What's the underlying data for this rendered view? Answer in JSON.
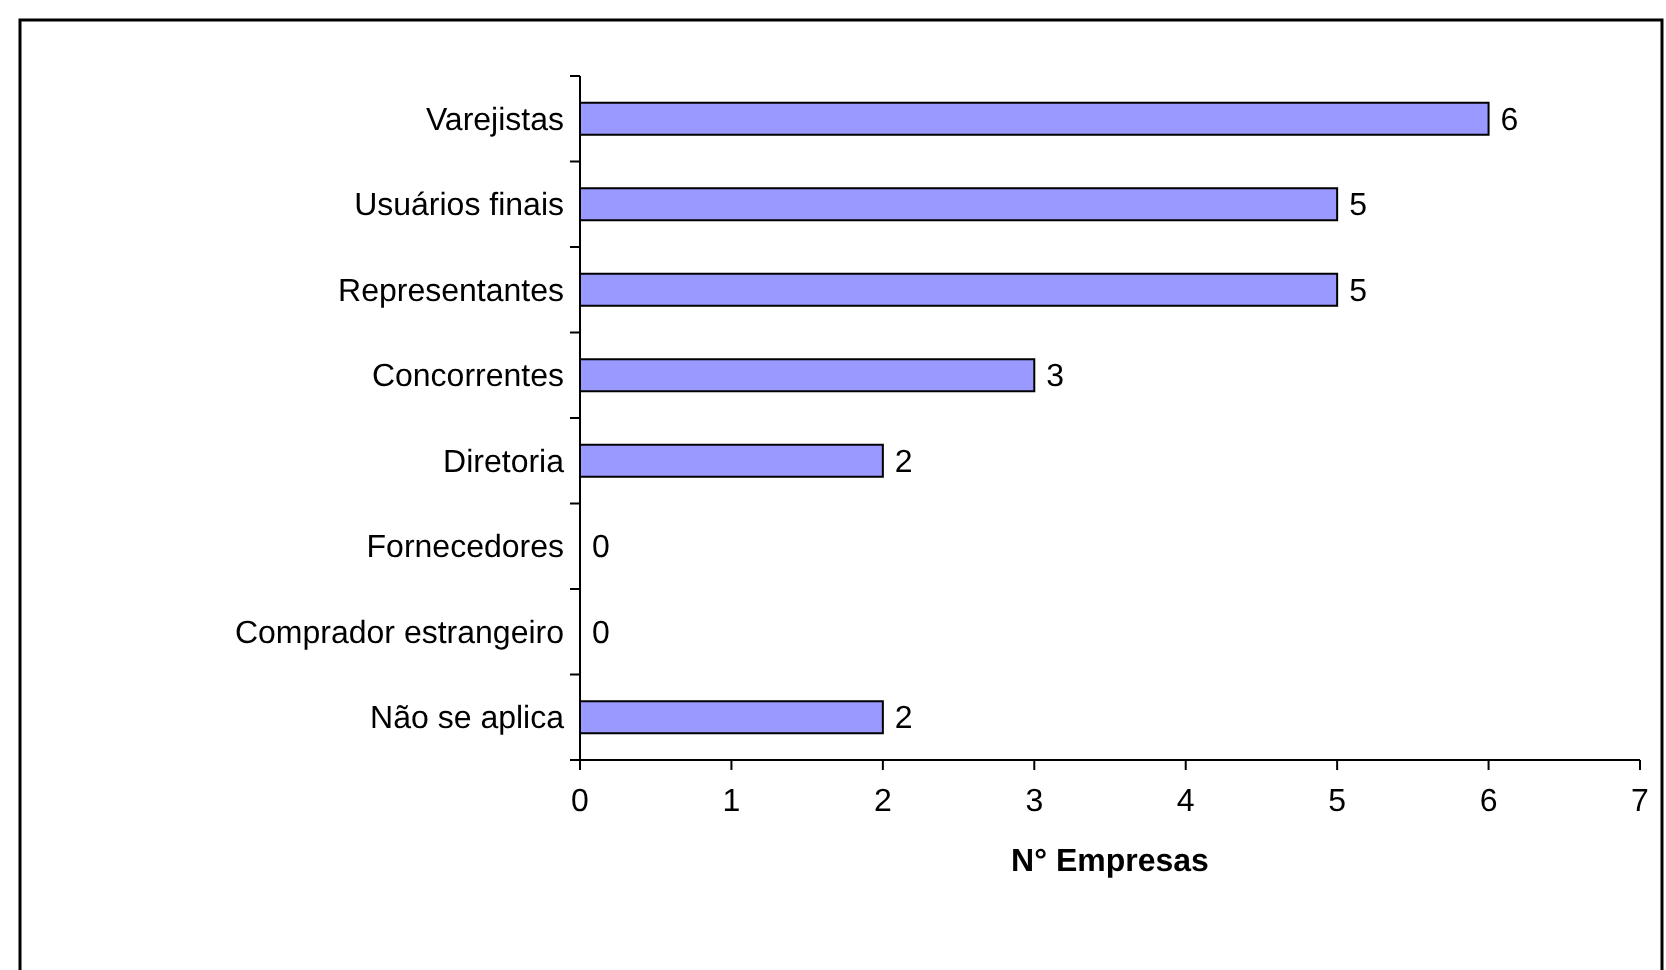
{
  "chart_data": {
    "type": "bar",
    "orientation": "horizontal",
    "xlabel": "N° Empresas",
    "categories": [
      "Varejistas",
      "Usuários finais",
      "Representantes",
      "Concorrentes",
      "Diretoria",
      "Fornecedores",
      "Comprador estrangeiro",
      "Não se aplica"
    ],
    "values": [
      6,
      5,
      5,
      3,
      2,
      0,
      0,
      2
    ],
    "color": "#9999ff",
    "xlim": [
      0,
      7
    ],
    "xticks": [
      0,
      1,
      2,
      3,
      4,
      5,
      6,
      7
    ],
    "data_labels": true,
    "grid": false
  }
}
